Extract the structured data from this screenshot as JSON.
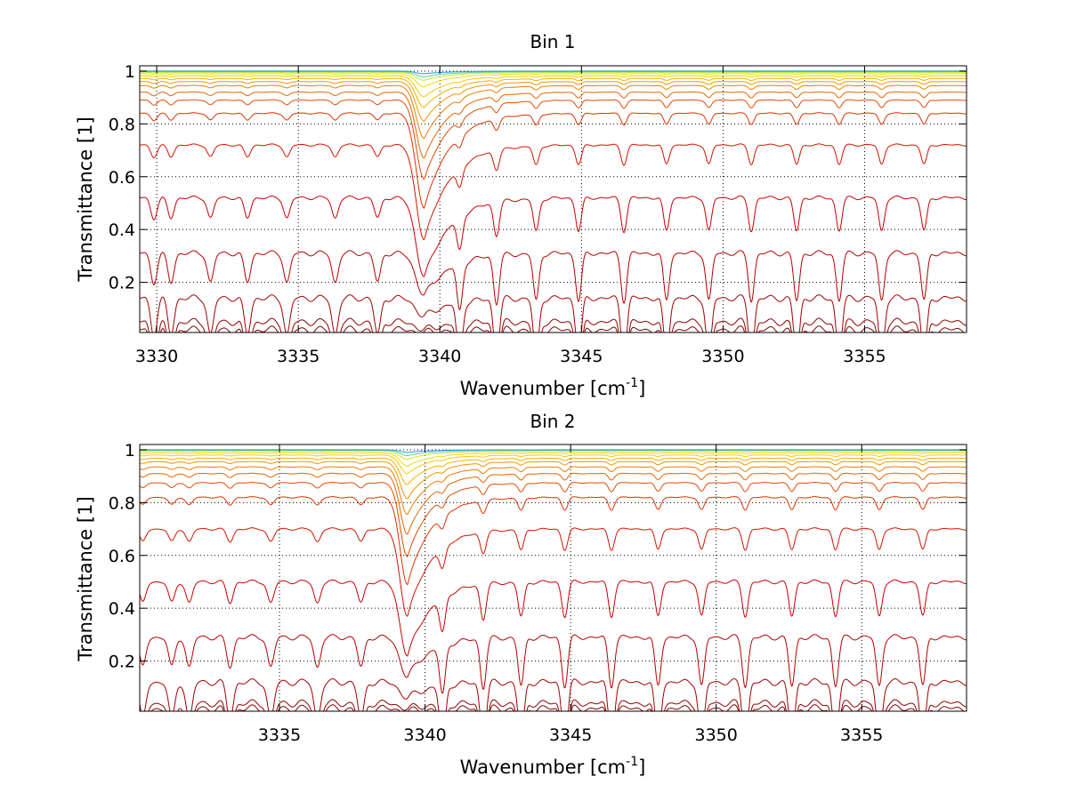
{
  "chart_data": [
    {
      "type": "line",
      "title": "Bin 1",
      "xlabel": {
        "base": "Wavenumber [cm",
        "sup": "-1",
        "tail": "]"
      },
      "ylabel": "Transmittance [1]",
      "xlim": [
        3329.4,
        3358.6
      ],
      "ylim": [
        0.01,
        1.02
      ],
      "xticks": [
        3330,
        3335,
        3340,
        3345,
        3350,
        3355
      ],
      "yticks": [
        0.2,
        0.4,
        0.6,
        0.8,
        1
      ],
      "ytick_labels": [
        "0.2",
        "0.4",
        "0.6",
        "0.8",
        "1"
      ],
      "grid": true,
      "major_line": {
        "x": 3339.45,
        "width": 0.28,
        "tail_width": 0.9
      },
      "minor_lines_left": [
        3329.9,
        3330.5,
        3331.9,
        3333.2,
        3334.6,
        3336.3,
        3337.8
      ],
      "minor_lines_right": [
        3340.7,
        3342.0,
        3343.4,
        3344.9,
        3346.5,
        3348.0,
        3349.5,
        3351.0,
        3352.6,
        3354.1,
        3355.6,
        3357.1
      ],
      "series": [
        {
          "color": "#7f0000",
          "base": 0.02,
          "major_depth": 0.01
        },
        {
          "color": "#8b0000",
          "base": 0.05,
          "major_depth": 0.03
        },
        {
          "color": "#a00000",
          "base": 0.14,
          "major_depth": 0.07
        },
        {
          "color": "#b40000",
          "base": 0.31,
          "major_depth": 0.16
        },
        {
          "color": "#c80000",
          "base": 0.52,
          "major_depth": 0.3
        },
        {
          "color": "#d21400",
          "base": 0.72,
          "major_depth": 0.36
        },
        {
          "color": "#dc3200",
          "base": 0.84,
          "major_depth": 0.36
        },
        {
          "color": "#e14b00",
          "base": 0.89,
          "major_depth": 0.3
        },
        {
          "color": "#e66400",
          "base": 0.92,
          "major_depth": 0.25
        },
        {
          "color": "#eb7d00",
          "base": 0.945,
          "major_depth": 0.2
        },
        {
          "color": "#f09600",
          "base": 0.96,
          "major_depth": 0.15
        },
        {
          "color": "#f5af00",
          "base": 0.972,
          "major_depth": 0.11
        },
        {
          "color": "#f5c800",
          "base": 0.982,
          "major_depth": 0.08
        },
        {
          "color": "#f0dc00",
          "base": 0.99,
          "major_depth": 0.05
        },
        {
          "color": "#c8e632",
          "base": 0.995,
          "major_depth": 0.03
        },
        {
          "color": "#64c896",
          "base": 0.998,
          "major_depth": 0.02
        },
        {
          "color": "#1ea0d2",
          "base": 1.0,
          "major_depth": 0.01
        }
      ]
    },
    {
      "type": "line",
      "title": "Bin 2",
      "xlabel": {
        "base": "Wavenumber [cm",
        "sup": "-1",
        "tail": "]"
      },
      "ylabel": "Transmittance [1]",
      "xlim": [
        3330.2,
        3358.6
      ],
      "ylim": [
        0.01,
        1.02
      ],
      "xticks": [
        3335,
        3340,
        3345,
        3350,
        3355
      ],
      "yticks": [
        0.2,
        0.4,
        0.6,
        0.8,
        1
      ],
      "ytick_labels": [
        "0.2",
        "0.4",
        "0.6",
        "0.8",
        "1"
      ],
      "grid": true,
      "major_line": {
        "x": 3339.4,
        "width": 0.25,
        "tail_width": 0.8
      },
      "minor_lines_left": [
        3330.3,
        3331.3,
        3331.9,
        3333.3,
        3334.7,
        3336.3,
        3337.8
      ],
      "minor_lines_right": [
        3340.6,
        3342.0,
        3343.3,
        3344.8,
        3346.4,
        3348.0,
        3349.5,
        3351.0,
        3352.6,
        3354.1,
        3355.6,
        3357.1
      ],
      "series": [
        {
          "color": "#7f0000",
          "base": 0.02,
          "major_depth": 0.01
        },
        {
          "color": "#8b0000",
          "base": 0.04,
          "major_depth": 0.02
        },
        {
          "color": "#a00000",
          "base": 0.12,
          "major_depth": 0.06
        },
        {
          "color": "#b40000",
          "base": 0.29,
          "major_depth": 0.15
        },
        {
          "color": "#c80000",
          "base": 0.5,
          "major_depth": 0.28
        },
        {
          "color": "#d21400",
          "base": 0.7,
          "major_depth": 0.33
        },
        {
          "color": "#dc3200",
          "base": 0.82,
          "major_depth": 0.33
        },
        {
          "color": "#e14b00",
          "base": 0.875,
          "major_depth": 0.28
        },
        {
          "color": "#e66400",
          "base": 0.91,
          "major_depth": 0.23
        },
        {
          "color": "#eb7d00",
          "base": 0.935,
          "major_depth": 0.18
        },
        {
          "color": "#f09600",
          "base": 0.955,
          "major_depth": 0.14
        },
        {
          "color": "#f5af00",
          "base": 0.968,
          "major_depth": 0.1
        },
        {
          "color": "#f5c800",
          "base": 0.98,
          "major_depth": 0.07
        },
        {
          "color": "#f0dc00",
          "base": 0.988,
          "major_depth": 0.05
        },
        {
          "color": "#c8e632",
          "base": 0.994,
          "major_depth": 0.03
        },
        {
          "color": "#64c896",
          "base": 0.998,
          "major_depth": 0.02
        },
        {
          "color": "#1ea0d2",
          "base": 1.0,
          "major_depth": 0.01
        }
      ]
    }
  ]
}
